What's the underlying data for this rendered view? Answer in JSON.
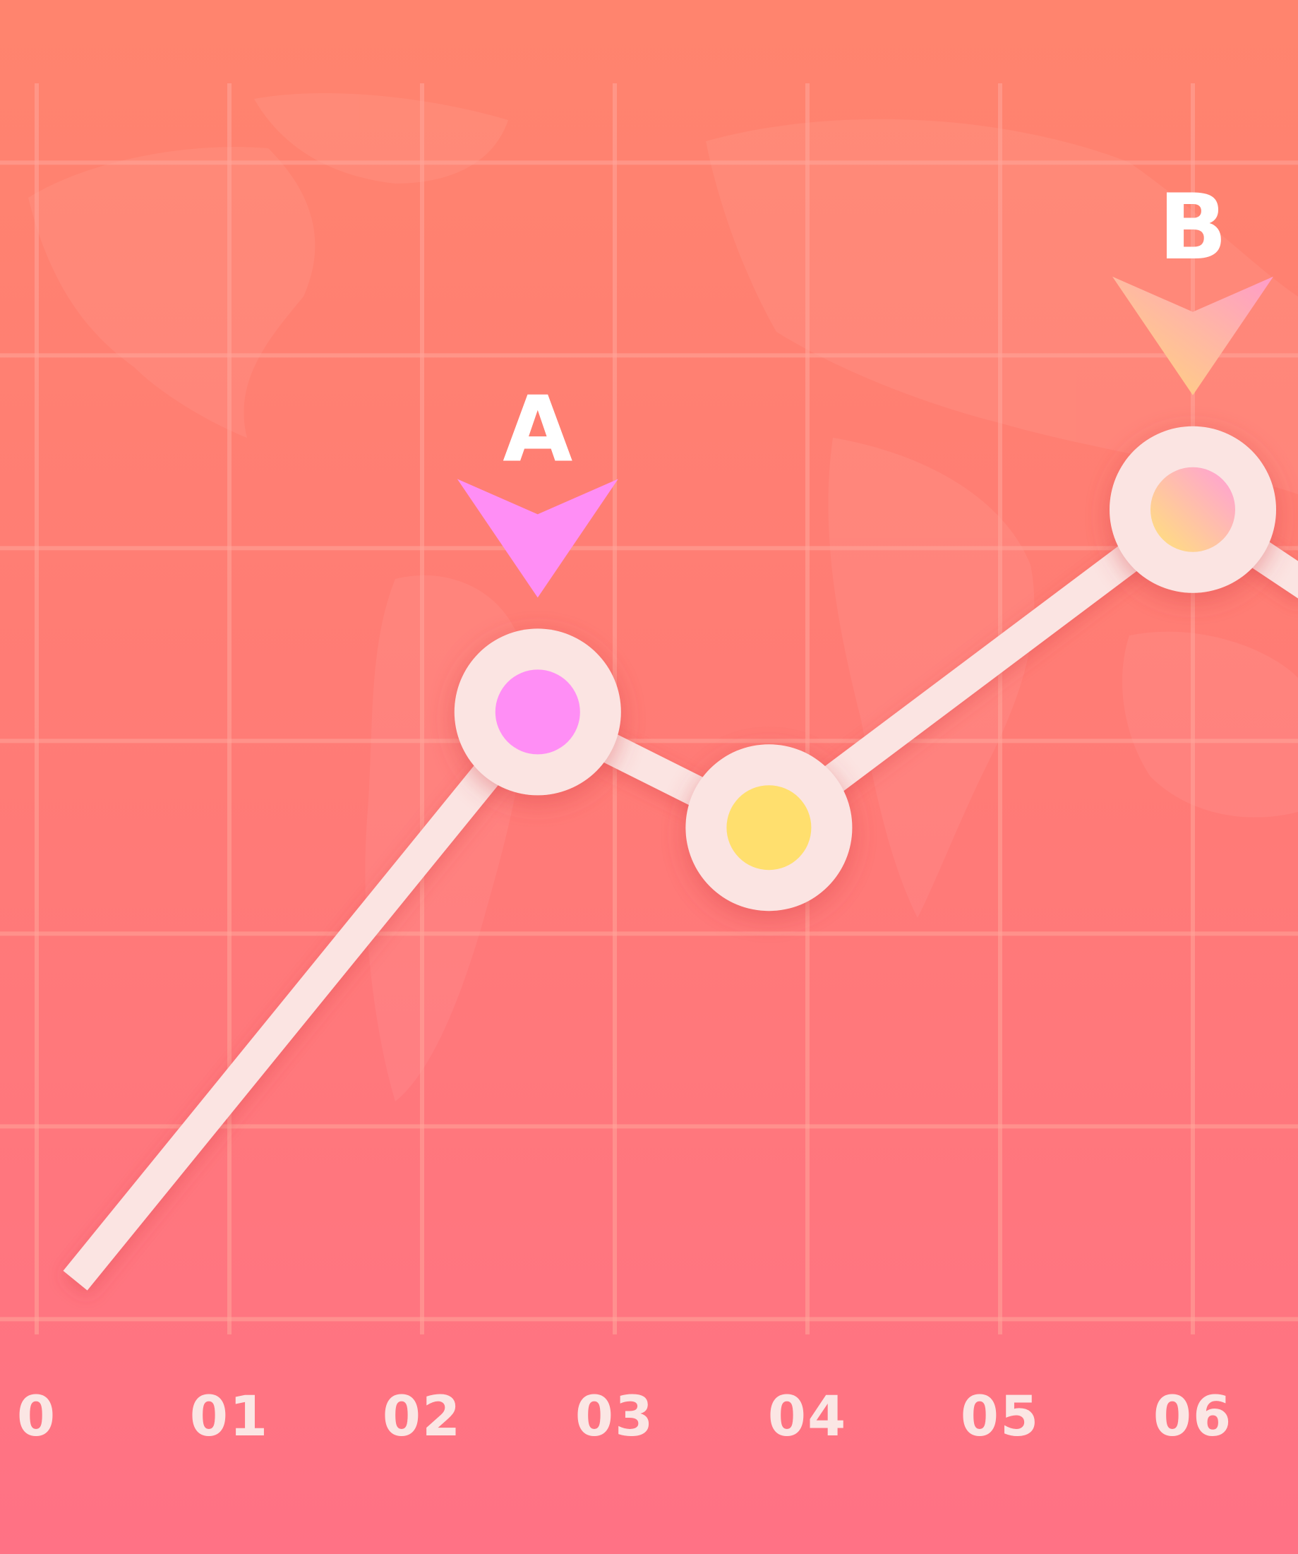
{
  "chart_data": {
    "type": "line",
    "title": "",
    "xlabel": "",
    "ylabel": "",
    "x_ticks": [
      "0",
      "01",
      "02",
      "03",
      "04",
      "05",
      "06"
    ],
    "xlim": [
      0,
      6.5
    ],
    "ylim": [
      0,
      6.5
    ],
    "grid": true,
    "series": [
      {
        "x": [
          0.2,
          2.6,
          3.8,
          6.0,
          6.6
        ],
        "y": [
          0.25,
          3.2,
          2.6,
          4.25,
          3.85
        ],
        "point_colors": [
          null,
          "#FF8EF5",
          "#FFDF6E",
          "#FFC27A",
          null
        ],
        "line_color": "#FBE4E2"
      }
    ],
    "annotations": [
      {
        "label": "A",
        "x": 2.6,
        "y": 3.2,
        "marker_color": "#FF8EF5"
      },
      {
        "label": "B",
        "x": 6.0,
        "y": 4.25,
        "marker_color": "#FFC07F"
      }
    ],
    "colors": {
      "background_top": "#FF846E",
      "background_bottom": "#FF7285",
      "grid": "#FFA69B",
      "tick_label": "#FBE6E4"
    }
  }
}
